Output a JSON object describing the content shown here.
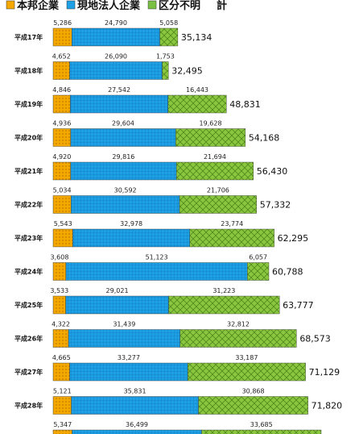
{
  "chart_data": {
    "type": "stacked-bar-horizontal",
    "categories": [
      "平成17年",
      "平成18年",
      "平成19年",
      "平成20年",
      "平成21年",
      "平成22年",
      "平成23年",
      "平成24年",
      "平成25年",
      "平成26年",
      "平成27年",
      "平成28年",
      null
    ],
    "series": [
      {
        "name": "本邦企業",
        "color": "#f5a800",
        "values": [
          5286,
          4652,
          4846,
          4936,
          4920,
          5034,
          5543,
          3608,
          3533,
          4322,
          4665,
          5121,
          5347
        ],
        "value_labels": [
          "5,286",
          "4,652",
          "4,846",
          "4,936",
          "4,920",
          "5,034",
          "5,543",
          "3,608",
          "3,533",
          "4,322",
          "4,665",
          "5,121",
          "5,347"
        ]
      },
      {
        "name": "現地法人企業",
        "color": "#1ea0e6",
        "values": [
          24790,
          26090,
          27542,
          29604,
          29816,
          30592,
          32978,
          51123,
          29021,
          31439,
          33277,
          35831,
          36499
        ],
        "value_labels": [
          "24,790",
          "26,090",
          "27,542",
          "29,604",
          "29,816",
          "30,592",
          "32,978",
          "51,123",
          "29,021",
          "31,439",
          "33,277",
          "35,831",
          "36,499"
        ]
      },
      {
        "name": "区分不明",
        "color": "#7ac143",
        "values": [
          5058,
          1753,
          16443,
          19628,
          21694,
          21706,
          23774,
          6057,
          31223,
          32812,
          33187,
          30868,
          33685
        ],
        "value_labels": [
          "5,058",
          "1,753",
          "16,443",
          "19,628",
          "21,694",
          "21,706",
          "23,774",
          "6,057",
          "31,223",
          "32,812",
          "33,187",
          "30,868",
          "33,685"
        ]
      }
    ],
    "total_label": "計",
    "totals": [
      35134,
      32495,
      48831,
      54168,
      56430,
      57332,
      62295,
      60788,
      63777,
      68573,
      71129,
      71820,
      null
    ],
    "total_labels": [
      "35,134",
      "32,495",
      "48,831",
      "54,168",
      "56,430",
      "57,332",
      "62,295",
      "60,788",
      "63,777",
      "68,573",
      "71,129",
      "71,820",
      null
    ]
  }
}
